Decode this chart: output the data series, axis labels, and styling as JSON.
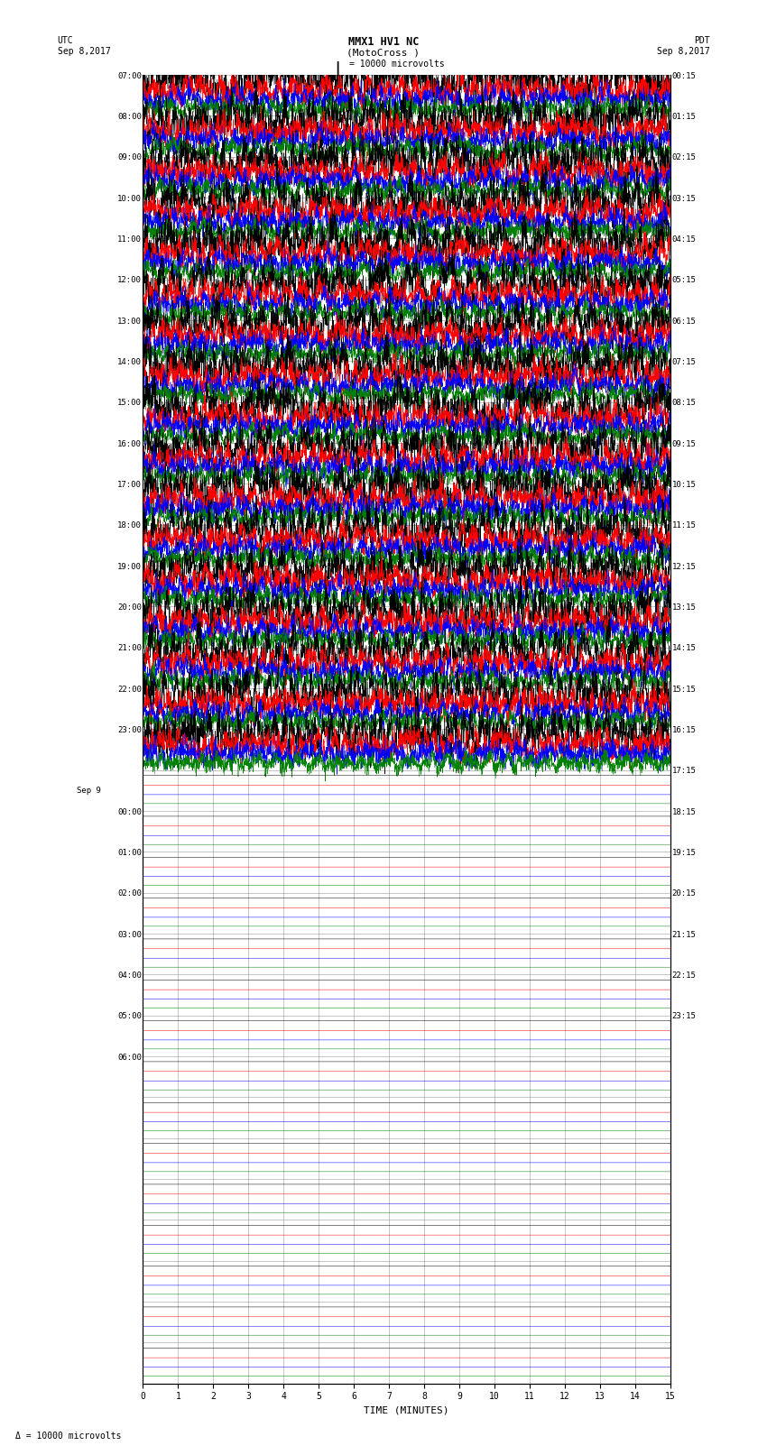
{
  "title_line1": "MMX1 HV1 NC",
  "title_line2": "(MotoCross )",
  "scale_label": "= 10000 microvolts",
  "utc_label": "UTC",
  "pdt_label": "PDT",
  "date_left": "Sep 8,2017",
  "date_right": "Sep 8,2017",
  "bottom_scale_label": "= 10000 microvolts",
  "xlabel": "TIME (MINUTES)",
  "xlim": [
    0,
    15
  ],
  "xticks": [
    0,
    1,
    2,
    3,
    4,
    5,
    6,
    7,
    8,
    9,
    10,
    11,
    12,
    13,
    14,
    15
  ],
  "trace_colors": [
    "black",
    "red",
    "blue",
    "green"
  ],
  "left_hour_labels": [
    "07:00",
    "08:00",
    "09:00",
    "10:00",
    "11:00",
    "12:00",
    "13:00",
    "14:00",
    "15:00",
    "16:00",
    "17:00",
    "18:00",
    "19:00",
    "20:00",
    "21:00",
    "22:00",
    "23:00",
    "",
    "00:00",
    "01:00",
    "02:00",
    "03:00",
    "04:00",
    "05:00",
    "06:00"
  ],
  "right_hour_labels": [
    "00:15",
    "01:15",
    "02:15",
    "03:15",
    "04:15",
    "05:15",
    "06:15",
    "07:15",
    "08:15",
    "09:15",
    "10:15",
    "11:15",
    "12:15",
    "13:15",
    "14:15",
    "15:15",
    "16:15",
    "17:15",
    "18:15",
    "19:15",
    "20:15",
    "21:15",
    "22:15",
    "23:15"
  ],
  "n_groups": 32,
  "active_groups": 17,
  "background_color": "white",
  "grid_color": "#999999",
  "trace_amplitudes": [
    0.28,
    0.18,
    0.15,
    0.12
  ],
  "noise_seed": 42
}
